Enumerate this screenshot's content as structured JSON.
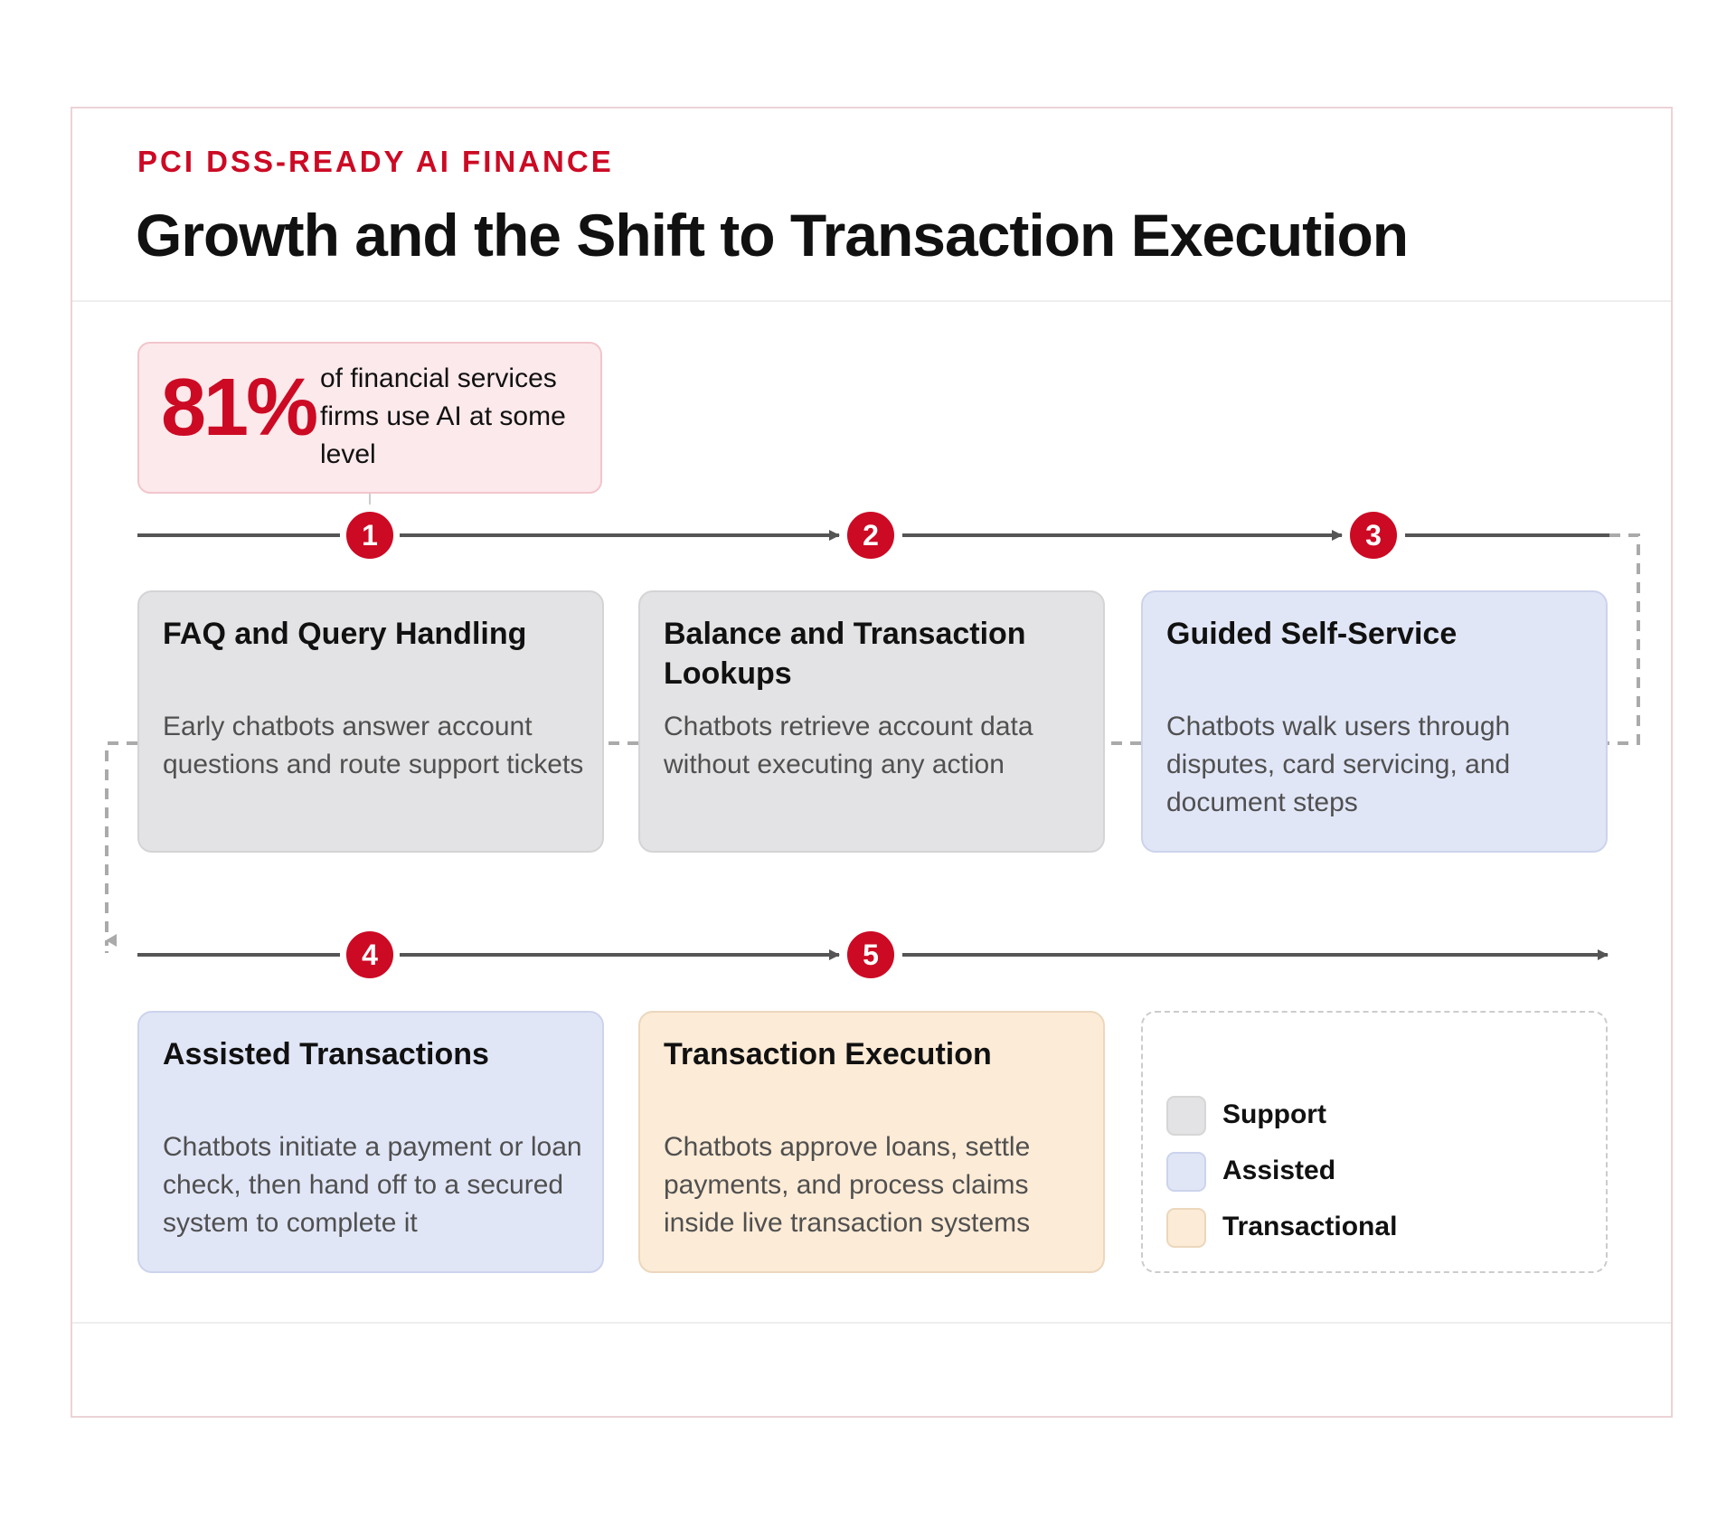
{
  "header": {
    "eyebrow": "PCI DSS-READY AI FINANCE",
    "title": "Growth and the Shift to Transaction Execution"
  },
  "stat": {
    "value": "81%",
    "text": "of financial services firms use AI at some level"
  },
  "steps": [
    {
      "number": "1",
      "title": "FAQ and Query Handling",
      "description": "Early chatbots answer account questions and route support tickets",
      "category": "Support"
    },
    {
      "number": "2",
      "title": "Balance and Transaction Lookups",
      "description": "Chatbots retrieve account data without executing any action",
      "category": "Support"
    },
    {
      "number": "3",
      "title": "Guided Self-Service",
      "description": "Chatbots walk users through disputes, card servicing, and document steps",
      "category": "Assisted"
    },
    {
      "number": "4",
      "title": "Assisted Transactions",
      "description": "Chatbots initiate a payment or loan check, then hand off to a secured system to complete it",
      "category": "Assisted"
    },
    {
      "number": "5",
      "title": "Transaction Execution",
      "description": "Chatbots approve loans, settle payments, and process claims inside live transaction systems",
      "category": "Transactional"
    }
  ],
  "legend": [
    {
      "label": "Support",
      "color": "#e3e3e5"
    },
    {
      "label": "Assisted",
      "color": "#e1e6f7"
    },
    {
      "label": "Transactional",
      "color": "#fcebd6"
    }
  ],
  "colors": {
    "accent": "#cc0a24",
    "timeline": "#555555",
    "connector": "#aaaaaa"
  }
}
